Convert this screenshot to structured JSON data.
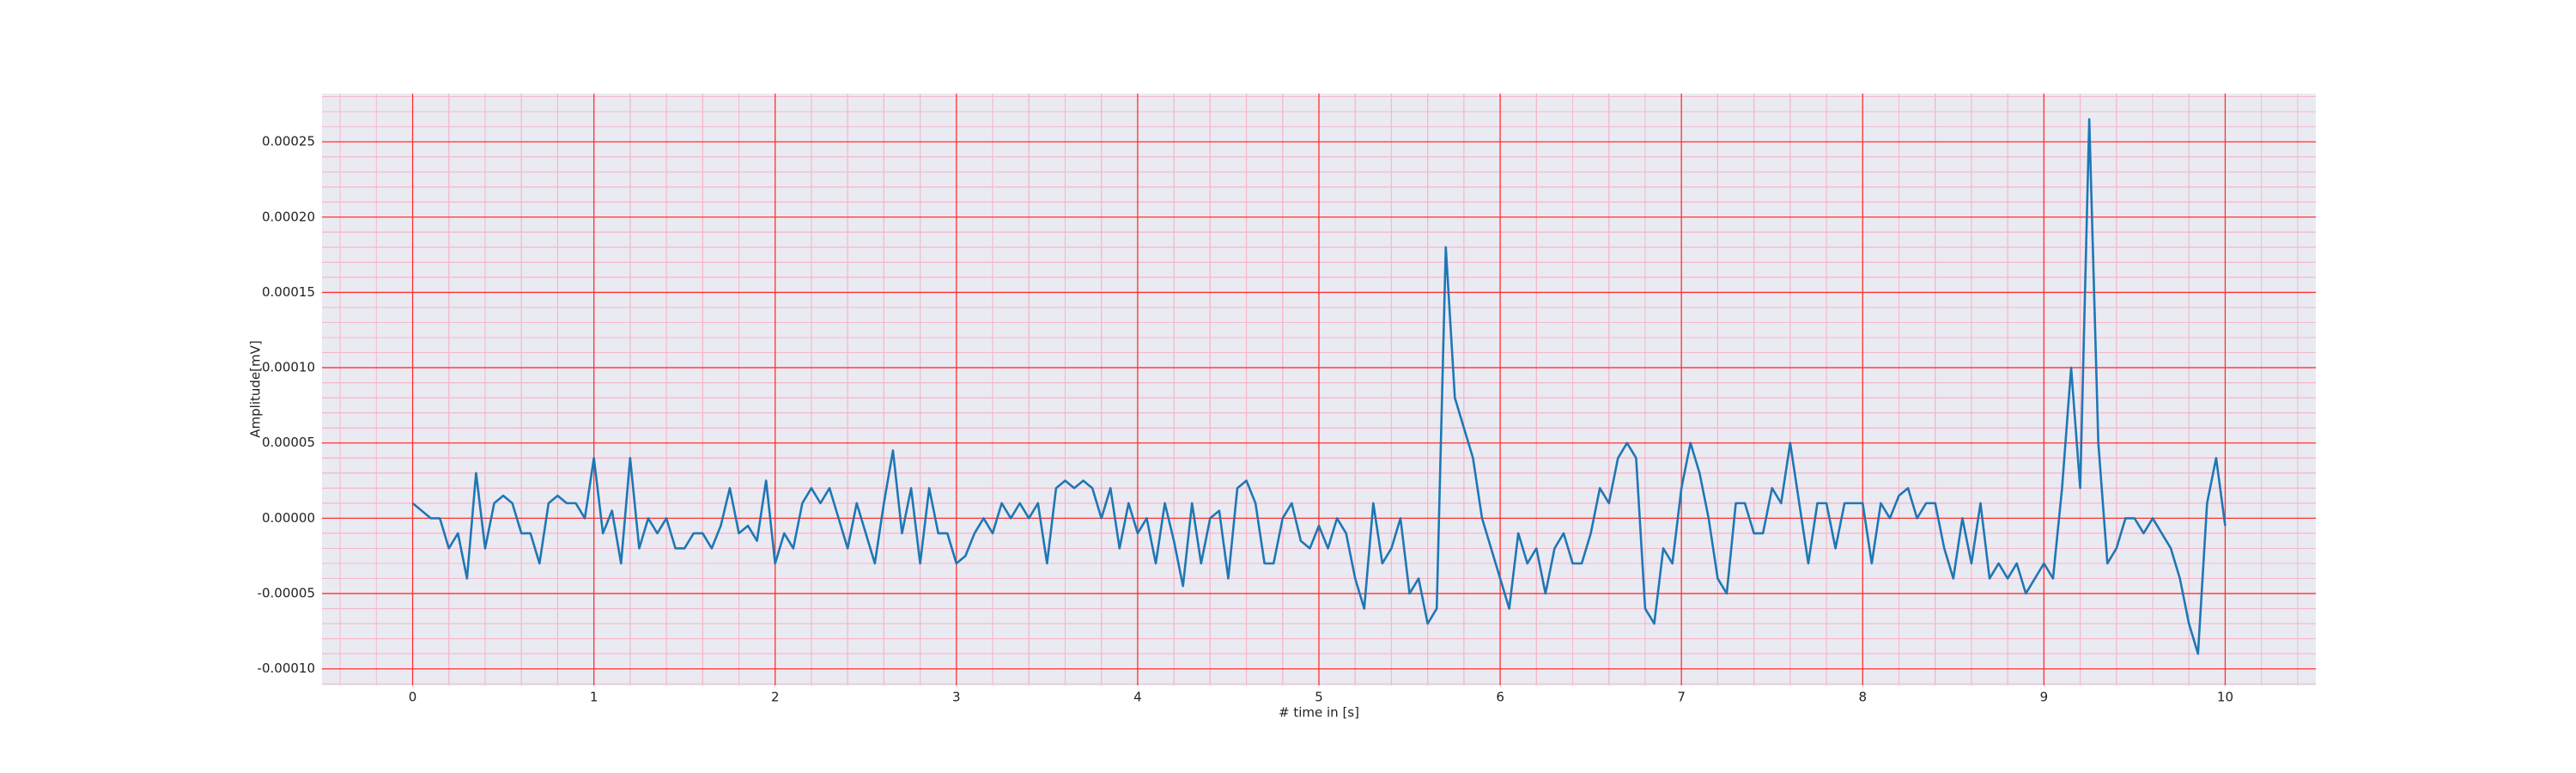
{
  "chart_data": {
    "type": "line",
    "xlabel": "# time in [s]",
    "ylabel": "Amplitude[mV]",
    "x": [
      0,
      0.05,
      0.1,
      0.15,
      0.2,
      0.25,
      0.3,
      0.35,
      0.4,
      0.45,
      0.5,
      0.55,
      0.6,
      0.65,
      0.7,
      0.75,
      0.8,
      0.85,
      0.9,
      0.95,
      1,
      1.05,
      1.1,
      1.15,
      1.2,
      1.25,
      1.3,
      1.35,
      1.4,
      1.45,
      1.5,
      1.55,
      1.6,
      1.65,
      1.7,
      1.75,
      1.8,
      1.85,
      1.9,
      1.95,
      2,
      2.05,
      2.1,
      2.15,
      2.2,
      2.25,
      2.3,
      2.35,
      2.4,
      2.45,
      2.5,
      2.55,
      2.6,
      2.65,
      2.7,
      2.75,
      2.8,
      2.85,
      2.9,
      2.95,
      3,
      3.05,
      3.1,
      3.15,
      3.2,
      3.25,
      3.3,
      3.35,
      3.4,
      3.45,
      3.5,
      3.55,
      3.6,
      3.65,
      3.7,
      3.75,
      3.8,
      3.85,
      3.9,
      3.95,
      4,
      4.05,
      4.1,
      4.15,
      4.2,
      4.25,
      4.3,
      4.35,
      4.4,
      4.45,
      4.5,
      4.55,
      4.6,
      4.65,
      4.7,
      4.75,
      4.8,
      4.85,
      4.9,
      4.95,
      5,
      5.05,
      5.1,
      5.15,
      5.2,
      5.25,
      5.3,
      5.35,
      5.4,
      5.45,
      5.5,
      5.55,
      5.6,
      5.65,
      5.7,
      5.75,
      5.8,
      5.85,
      5.9,
      5.95,
      6,
      6.05,
      6.1,
      6.15,
      6.2,
      6.25,
      6.3,
      6.35,
      6.4,
      6.45,
      6.5,
      6.55,
      6.6,
      6.65,
      6.7,
      6.75,
      6.8,
      6.85,
      6.9,
      6.95,
      7,
      7.05,
      7.1,
      7.15,
      7.2,
      7.25,
      7.3,
      7.35,
      7.4,
      7.45,
      7.5,
      7.55,
      7.6,
      7.65,
      7.7,
      7.75,
      7.8,
      7.85,
      7.9,
      7.95,
      8,
      8.05,
      8.1,
      8.15,
      8.2,
      8.25,
      8.3,
      8.35,
      8.4,
      8.45,
      8.5,
      8.55,
      8.6,
      8.65,
      8.7,
      8.75,
      8.8,
      8.85,
      8.9,
      8.95,
      9,
      9.05,
      9.1,
      9.15,
      9.2,
      9.25,
      9.3,
      9.35,
      9.4,
      9.45,
      9.5,
      9.55,
      9.6,
      9.65,
      9.7,
      9.75,
      9.8,
      9.85,
      9.9,
      9.95,
      10
    ],
    "series": [
      {
        "color": "#1f77b4",
        "values": [
          1e-05,
          5e-06,
          0,
          0,
          -2e-05,
          -1e-05,
          -4e-05,
          3e-05,
          -2e-05,
          1e-05,
          1.5e-05,
          1e-05,
          -1e-05,
          -1e-05,
          -3e-05,
          1e-05,
          1.5e-05,
          1e-05,
          1e-05,
          0,
          4e-05,
          -1e-05,
          5e-06,
          -3e-05,
          4e-05,
          -2e-05,
          0,
          -1e-05,
          0,
          -2e-05,
          -2e-05,
          -1e-05,
          -1e-05,
          -2e-05,
          -5e-06,
          2e-05,
          -1e-05,
          -5e-06,
          -1.5e-05,
          2.5e-05,
          -3e-05,
          -1e-05,
          -2e-05,
          1e-05,
          2e-05,
          1e-05,
          2e-05,
          0,
          -2e-05,
          1e-05,
          -1e-05,
          -3e-05,
          1e-05,
          4.5e-05,
          -1e-05,
          2e-05,
          -3e-05,
          2e-05,
          -1e-05,
          -1e-05,
          -3e-05,
          -2.5e-05,
          -1e-05,
          0,
          -1e-05,
          1e-05,
          0,
          1e-05,
          0,
          1e-05,
          -3e-05,
          2e-05,
          2.5e-05,
          2e-05,
          2.5e-05,
          2e-05,
          0,
          2e-05,
          -2e-05,
          1e-05,
          -1e-05,
          0,
          -3e-05,
          1e-05,
          -1.5e-05,
          -4.5e-05,
          1e-05,
          -3e-05,
          0,
          5e-06,
          -4e-05,
          2e-05,
          2.5e-05,
          1e-05,
          -3e-05,
          -3e-05,
          0,
          1e-05,
          -1.5e-05,
          -2e-05,
          -5e-06,
          -2e-05,
          0,
          -1e-05,
          -4e-05,
          -6e-05,
          1e-05,
          -3e-05,
          -2e-05,
          0,
          -5e-05,
          -4e-05,
          -7e-05,
          -6e-05,
          0.00018,
          8e-05,
          6e-05,
          4e-05,
          0,
          -2e-05,
          -4e-05,
          -6e-05,
          -1e-05,
          -3e-05,
          -2e-05,
          -5e-05,
          -2e-05,
          -1e-05,
          -3e-05,
          -3e-05,
          -1e-05,
          2e-05,
          1e-05,
          4e-05,
          5e-05,
          4e-05,
          -6e-05,
          -7e-05,
          -2e-05,
          -3e-05,
          2e-05,
          5e-05,
          3e-05,
          0,
          -4e-05,
          -5e-05,
          1e-05,
          1e-05,
          -1e-05,
          -1e-05,
          2e-05,
          1e-05,
          5e-05,
          1e-05,
          -3e-05,
          1e-05,
          1e-05,
          -2e-05,
          1e-05,
          1e-05,
          1e-05,
          -3e-05,
          1e-05,
          0,
          1.5e-05,
          2e-05,
          0,
          1e-05,
          1e-05,
          -2e-05,
          -4e-05,
          0,
          -3e-05,
          1e-05,
          -4e-05,
          -3e-05,
          -4e-05,
          -3e-05,
          -5e-05,
          -4e-05,
          -3e-05,
          -4e-05,
          2e-05,
          0.0001,
          2e-05,
          0.000265,
          5e-05,
          -3e-05,
          -2e-05,
          0,
          0,
          -1e-05,
          0,
          -1e-05,
          -2e-05,
          -4e-05,
          -7e-05,
          -9e-05,
          1e-05,
          4e-05,
          -5e-06
        ]
      }
    ],
    "xlim": [
      -0.5,
      10.5
    ],
    "xticks": [
      0,
      1,
      2,
      3,
      4,
      5,
      6,
      7,
      8,
      9,
      10
    ],
    "ylim": [
      -0.000111,
      0.000282
    ],
    "yticks": [
      {
        "value": -0.0001,
        "label": "-0.00010"
      },
      {
        "value": -5e-05,
        "label": "-0.00005"
      },
      {
        "value": 0,
        "label": "0.00000"
      },
      {
        "value": 5e-05,
        "label": "0.00005"
      },
      {
        "value": 0.0001,
        "label": "0.00010"
      },
      {
        "value": 0.00015,
        "label": "0.00015"
      },
      {
        "value": 0.0002,
        "label": "0.00020"
      },
      {
        "value": 0.00025,
        "label": "0.00025"
      }
    ],
    "grid": true,
    "minor_grid": true,
    "background": "#eaeaf2",
    "grid_color": "#ff3030",
    "minor_grid_color": "#f5b8c8"
  }
}
